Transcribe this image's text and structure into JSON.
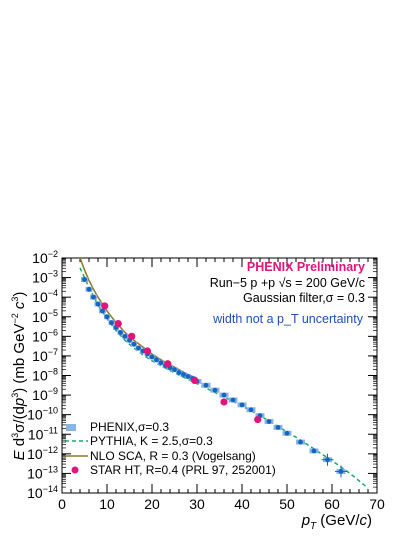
{
  "chart_data": {
    "type": "scatter",
    "title": "",
    "xlabel": "p_T (GeV/c)",
    "ylabel": "E d³σ/(dp³) (mb GeV⁻² c³)",
    "xlim": [
      0,
      70
    ],
    "ylim_log10": [
      -14,
      -2
    ],
    "y_scale": "log",
    "x_ticks": [
      "0",
      "10",
      "20",
      "30",
      "40",
      "50",
      "60",
      "70"
    ],
    "y_tick_exponents": [
      -2,
      -3,
      -4,
      -5,
      -6,
      -7,
      -8,
      -9,
      -10,
      -11,
      -12,
      -13,
      -14
    ],
    "y_tick_base": "10",
    "annotations": {
      "preliminary": "PHENIX Preliminary",
      "run_line": "Run−5 p +p √s = 200 GeV/c",
      "filter_line": "Gaussian filter,σ = 0.3",
      "note": "width not a p_T uncertainty"
    },
    "colors": {
      "phenix_points": "#1565c0",
      "phenix_boxes": "#8ab4e3",
      "pythia": "#1aa86a",
      "nlo": "#8a7a2a",
      "star": "#e0147a",
      "preliminary": "#e0147a",
      "note": "#1f4fbf"
    },
    "legend_position": "bottom-left",
    "legend": [
      {
        "label": "PHENIX,σ=0.3",
        "kind": "box"
      },
      {
        "label": "PYTHIA, K = 2.5,σ=0.3",
        "kind": "dashed"
      },
      {
        "label": "NLO SCA, R = 0.3 (Vogelsang)",
        "kind": "solid"
      },
      {
        "label": "STAR HT, R=0.4 (PRL 97, 252001)",
        "kind": "marker"
      }
    ],
    "series": [
      {
        "name": "PHENIX,σ=0.3",
        "x": [
          5,
          6,
          7,
          8,
          9,
          10,
          11,
          12,
          13,
          14,
          15,
          16,
          17,
          18,
          19,
          20,
          21,
          22,
          23,
          24,
          25,
          26,
          27,
          28,
          29,
          30,
          32,
          34,
          36,
          38,
          40,
          42,
          44,
          46,
          48,
          50,
          53,
          56,
          59,
          62
        ],
        "log10_y": [
          -3.1,
          -3.6,
          -4.0,
          -4.35,
          -4.7,
          -5.0,
          -5.3,
          -5.55,
          -5.8,
          -6.0,
          -6.2,
          -6.4,
          -6.6,
          -6.75,
          -6.9,
          -7.05,
          -7.2,
          -7.35,
          -7.5,
          -7.6,
          -7.7,
          -7.85,
          -7.95,
          -8.05,
          -8.15,
          -8.3,
          -8.5,
          -8.75,
          -9.0,
          -9.25,
          -9.5,
          -9.75,
          -10.05,
          -10.35,
          -10.65,
          -10.95,
          -11.4,
          -11.85,
          -12.3,
          -12.9
        ]
      },
      {
        "name": "PYTHIA, K = 2.5,σ=0.3",
        "x": [
          4,
          5,
          6,
          8,
          10,
          12,
          14,
          16,
          18,
          20,
          22,
          24,
          26,
          28,
          30,
          33,
          36,
          40,
          44,
          48,
          52,
          56,
          60,
          64,
          68
        ],
        "log10_y": [
          -2.5,
          -3.0,
          -3.5,
          -4.4,
          -5.1,
          -5.7,
          -6.2,
          -6.6,
          -6.95,
          -7.25,
          -7.5,
          -7.75,
          -7.98,
          -8.2,
          -8.42,
          -8.75,
          -9.1,
          -9.55,
          -10.05,
          -10.6,
          -11.15,
          -11.75,
          -12.35,
          -13.0,
          -13.75
        ]
      },
      {
        "name": "NLO SCA, R = 0.3 (Vogelsang)",
        "x": [
          4,
          5,
          6,
          7,
          8,
          10,
          12,
          14,
          16,
          18,
          20,
          22,
          24,
          26,
          28,
          30
        ],
        "log10_y": [
          -2.0,
          -2.6,
          -3.15,
          -3.6,
          -4.0,
          -4.7,
          -5.3,
          -5.8,
          -6.2,
          -6.55,
          -6.9,
          -7.2,
          -7.45,
          -7.7,
          -7.95,
          -8.15
        ]
      },
      {
        "name": "STAR HT, R=0.4 (PRL 97, 252001)",
        "x": [
          9.5,
          12.5,
          15.5,
          19,
          23.5,
          29.5,
          36,
          43.5
        ],
        "log10_y": [
          -4.45,
          -5.35,
          -6.0,
          -6.75,
          -7.4,
          -8.25,
          -9.35,
          -10.25
        ]
      }
    ]
  }
}
